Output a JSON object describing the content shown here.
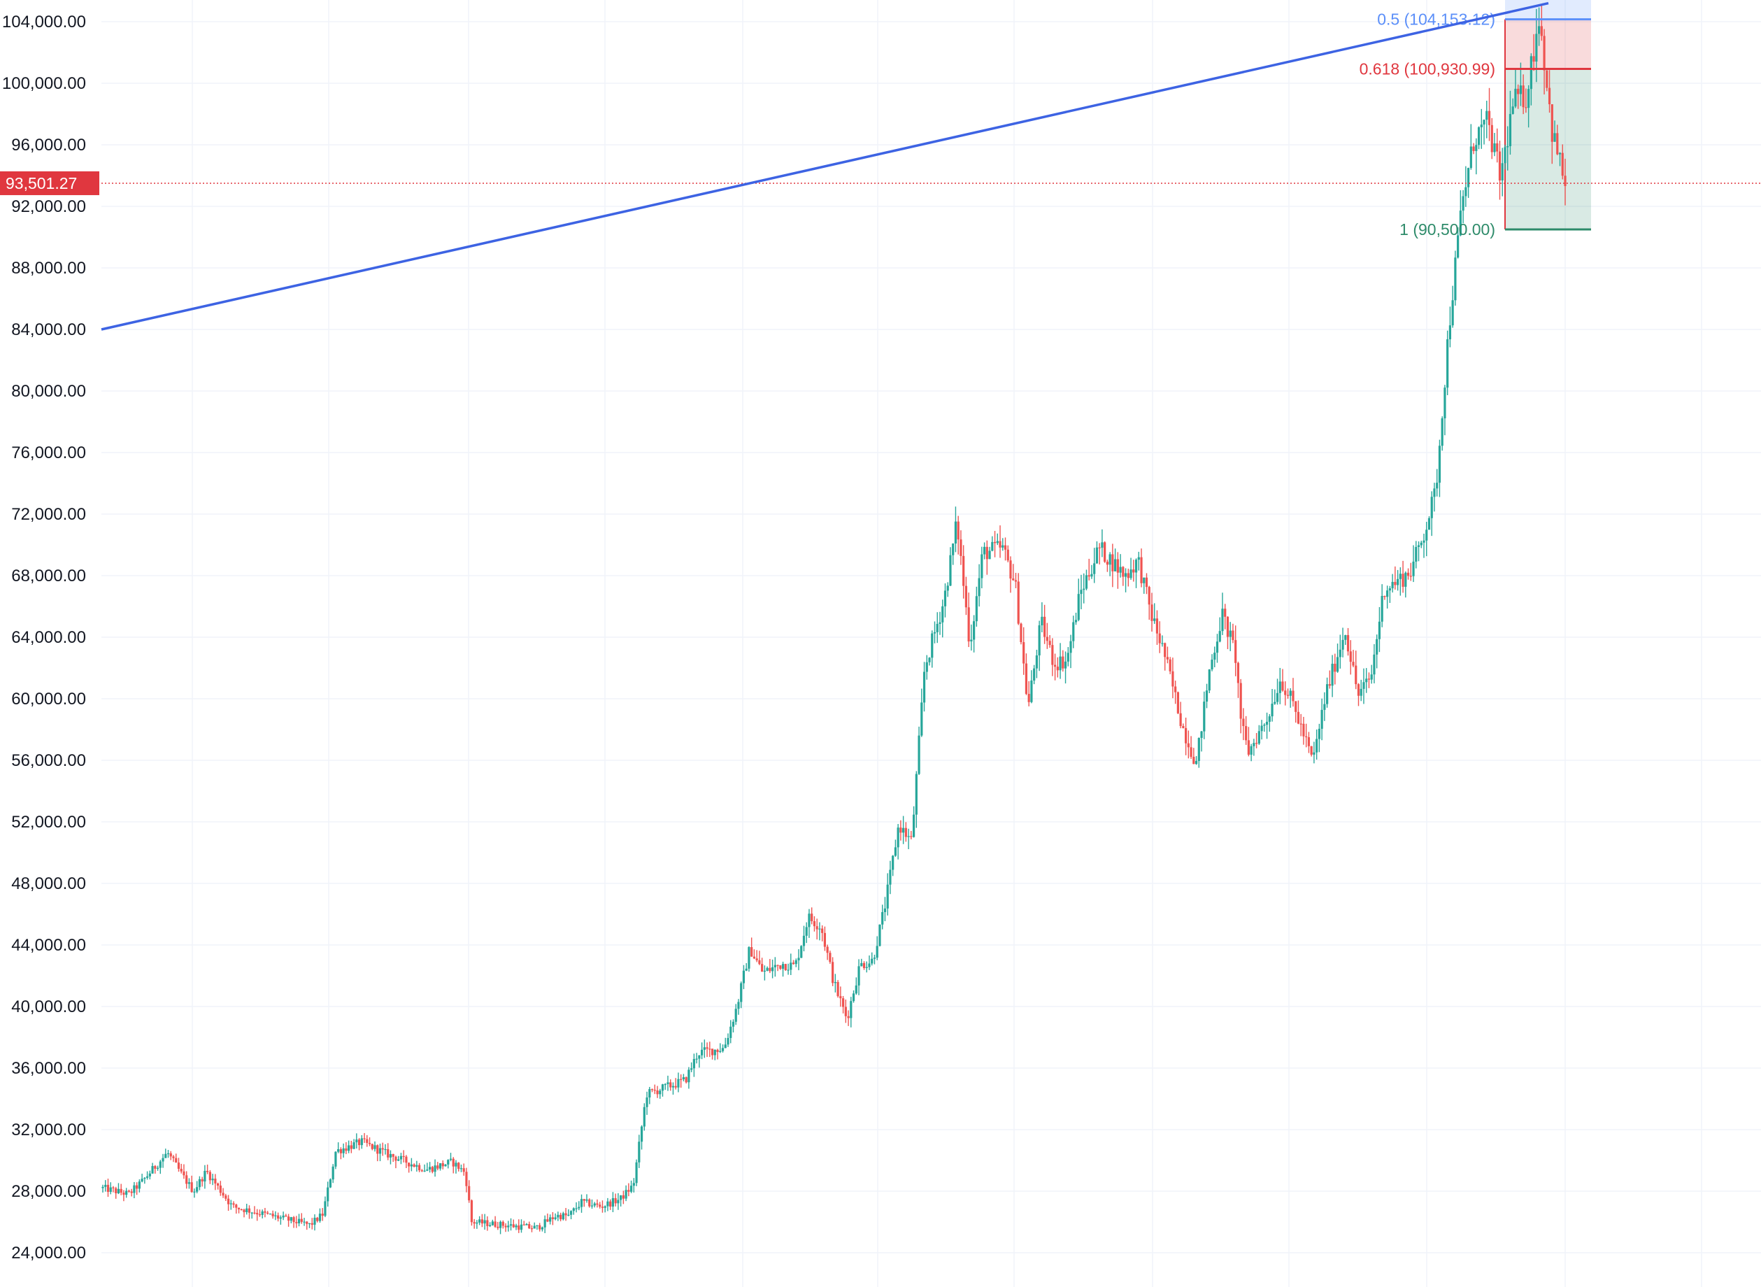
{
  "chart_data": {
    "type": "candlestick",
    "title": "",
    "ylim": [
      23300,
      105200
    ],
    "y_ticks": [
      {
        "value": 104000,
        "label": "104,000.00"
      },
      {
        "value": 100000,
        "label": "100,000.00"
      },
      {
        "value": 96000,
        "label": "96,000.00"
      },
      {
        "value": 92000,
        "label": "92,000.00"
      },
      {
        "value": 88000,
        "label": "88,000.00"
      },
      {
        "value": 84000,
        "label": "84,000.00"
      },
      {
        "value": 80000,
        "label": "80,000.00"
      },
      {
        "value": 76000,
        "label": "76,000.00"
      },
      {
        "value": 72000,
        "label": "72,000.00"
      },
      {
        "value": 68000,
        "label": "68,000.00"
      },
      {
        "value": 64000,
        "label": "64,000.00"
      },
      {
        "value": 60000,
        "label": "60,000.00"
      },
      {
        "value": 56000,
        "label": "56,000.00"
      },
      {
        "value": 52000,
        "label": "52,000.00"
      },
      {
        "value": 48000,
        "label": "48,000.00"
      },
      {
        "value": 44000,
        "label": "44,000.00"
      },
      {
        "value": 40000,
        "label": "40,000.00"
      },
      {
        "value": 36000,
        "label": "36,000.00"
      },
      {
        "value": 32000,
        "label": "32,000.00"
      },
      {
        "value": 28000,
        "label": "28,000.00"
      },
      {
        "value": 24000,
        "label": "24,000.00"
      }
    ],
    "current_price": {
      "value": 93501.27,
      "label": "93,501.27"
    },
    "fib_levels": [
      {
        "ratio": 0.5,
        "price": 104153.12,
        "label": "0.5 (104,153.12)",
        "color": "#5b8ff9"
      },
      {
        "ratio": 0.618,
        "price": 100930.99,
        "label": "0.618 (100,930.99)",
        "color": "#e0373f"
      },
      {
        "ratio": 1,
        "price": 90500.0,
        "label": "1 (90,500.00)",
        "color": "#2e8b6a"
      }
    ],
    "trendline": {
      "start_price": 84000,
      "end_price": 105200,
      "color": "#3d63e3"
    },
    "price_anchors": [
      [
        0,
        28200
      ],
      [
        0.02,
        27800
      ],
      [
        0.03,
        28600
      ],
      [
        0.05,
        30500
      ],
      [
        0.06,
        29200
      ],
      [
        0.07,
        28000
      ],
      [
        0.08,
        29300
      ],
      [
        0.1,
        27000
      ],
      [
        0.13,
        26400
      ],
      [
        0.16,
        25800
      ],
      [
        0.17,
        26500
      ],
      [
        0.18,
        30600
      ],
      [
        0.2,
        31200
      ],
      [
        0.22,
        30400
      ],
      [
        0.25,
        29400
      ],
      [
        0.27,
        29900
      ],
      [
        0.28,
        29200
      ],
      [
        0.285,
        26000
      ],
      [
        0.31,
        25800
      ],
      [
        0.335,
        25600
      ],
      [
        0.35,
        26400
      ],
      [
        0.36,
        26400
      ],
      [
        0.37,
        27300
      ],
      [
        0.385,
        27000
      ],
      [
        0.4,
        27500
      ],
      [
        0.41,
        28400
      ],
      [
        0.42,
        34300
      ],
      [
        0.45,
        35200
      ],
      [
        0.46,
        37000
      ],
      [
        0.48,
        37300
      ],
      [
        0.49,
        40000
      ],
      [
        0.5,
        43800
      ],
      [
        0.51,
        42200
      ],
      [
        0.525,
        42800
      ],
      [
        0.535,
        42600
      ],
      [
        0.545,
        45800
      ],
      [
        0.555,
        45200
      ],
      [
        0.565,
        41500
      ],
      [
        0.575,
        39200
      ],
      [
        0.585,
        42700
      ],
      [
        0.595,
        43000
      ],
      [
        0.605,
        46800
      ],
      [
        0.615,
        51800
      ],
      [
        0.625,
        50700
      ],
      [
        0.635,
        62000
      ],
      [
        0.65,
        66400
      ],
      [
        0.66,
        71500
      ],
      [
        0.67,
        63500
      ],
      [
        0.68,
        69500
      ],
      [
        0.695,
        69800
      ],
      [
        0.705,
        67500
      ],
      [
        0.715,
        59400
      ],
      [
        0.725,
        65000
      ],
      [
        0.735,
        62300
      ],
      [
        0.745,
        62500
      ],
      [
        0.755,
        66800
      ],
      [
        0.77,
        69800
      ],
      [
        0.79,
        68000
      ],
      [
        0.8,
        69000
      ],
      [
        0.81,
        65500
      ],
      [
        0.82,
        63000
      ],
      [
        0.835,
        58000
      ],
      [
        0.845,
        55800
      ],
      [
        0.855,
        61800
      ],
      [
        0.865,
        65500
      ],
      [
        0.875,
        63000
      ],
      [
        0.88,
        58200
      ],
      [
        0.885,
        56500
      ],
      [
        0.9,
        58800
      ],
      [
        0.91,
        61300
      ],
      [
        0.92,
        59600
      ],
      [
        0.935,
        55900
      ],
      [
        0.945,
        60300
      ],
      [
        0.96,
        64500
      ],
      [
        0.97,
        60200
      ],
      [
        0.98,
        61400
      ],
      [
        0.99,
        67200
      ],
      [
        1.0,
        67600
      ],
      [
        1.01,
        68200
      ],
      [
        1.02,
        70500
      ],
      [
        1.03,
        73500
      ],
      [
        1.04,
        84000
      ],
      [
        1.05,
        92000
      ],
      [
        1.06,
        96500
      ],
      [
        1.07,
        97400
      ],
      [
        1.08,
        93800
      ],
      [
        1.09,
        98800
      ],
      [
        1.1,
        99200
      ],
      [
        1.11,
        104500
      ],
      [
        1.12,
        96800
      ],
      [
        1.13,
        93500
      ]
    ]
  },
  "colors": {
    "up": "#26a69a",
    "down": "#ef5350",
    "grid": "#f0f3fa",
    "badge": "#e0373f",
    "dotted_line": "#e0373f"
  }
}
